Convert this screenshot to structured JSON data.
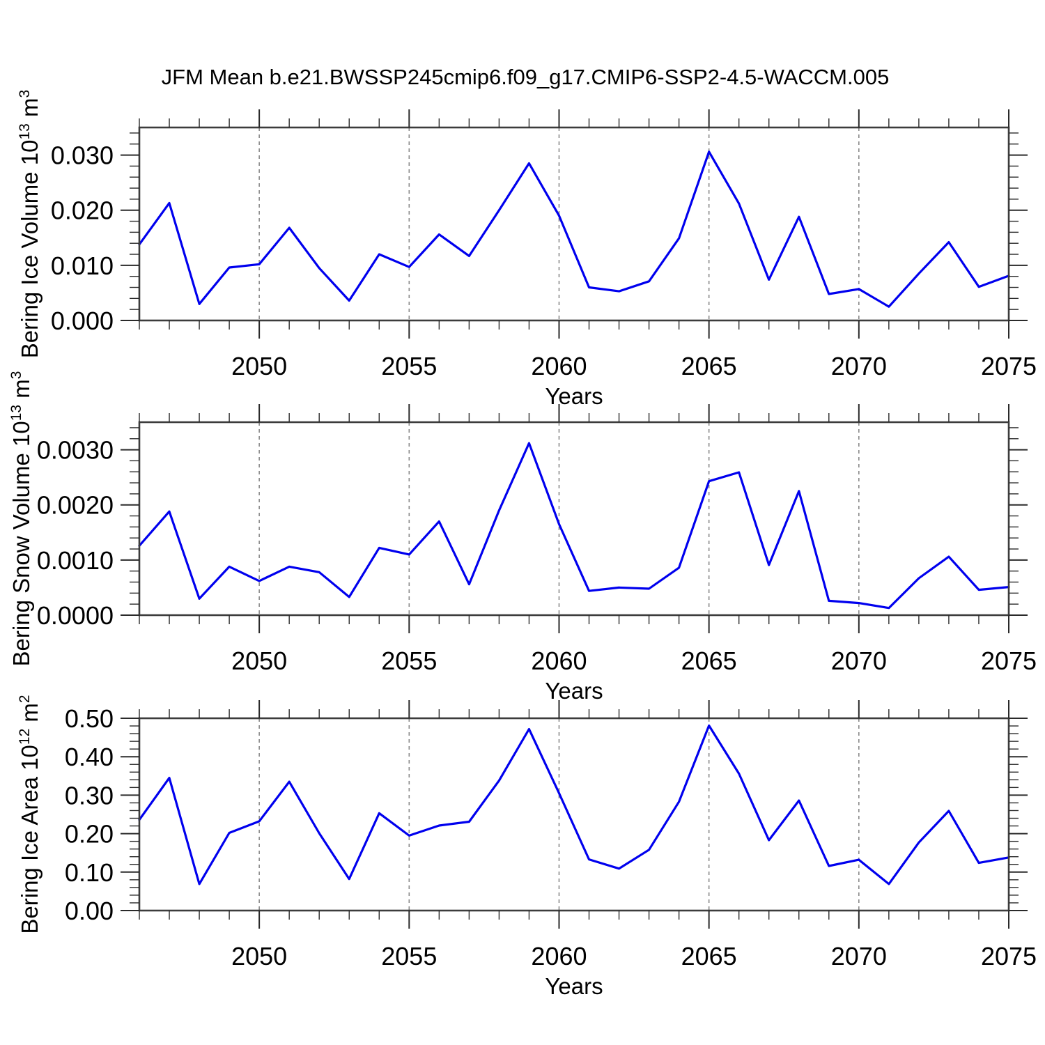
{
  "title": "JFM Mean b.e21.BWSSP245cmip6.f09_g17.CMIP6-SSP2-4.5-WACCM.005",
  "colors": {
    "line": "#0000EE",
    "frame": "#3c3c3c",
    "tick": "#2a2a2a",
    "grid": "#8a8a8a",
    "text": "#000000"
  },
  "years": [
    2046,
    2047,
    2048,
    2049,
    2050,
    2051,
    2052,
    2053,
    2054,
    2055,
    2056,
    2057,
    2058,
    2059,
    2060,
    2061,
    2062,
    2063,
    2064,
    2065,
    2066,
    2067,
    2068,
    2069,
    2070,
    2071,
    2072,
    2073,
    2074,
    2075
  ],
  "chart_data": [
    {
      "type": "line",
      "name": "bering-ice-volume",
      "ylabel_segments": [
        {
          "t": "Bering Ice Volume 10"
        },
        {
          "t": "13",
          "sup": true
        },
        {
          "t": " m"
        },
        {
          "t": "3",
          "sup": true
        }
      ],
      "xlabel": "Years",
      "xlim": [
        2046,
        2075
      ],
      "ylim": [
        0,
        0.035
      ],
      "values": [
        0.0138,
        0.0213,
        0.003,
        0.0096,
        0.0102,
        0.0168,
        0.0095,
        0.0036,
        0.012,
        0.0097,
        0.0156,
        0.0117,
        0.02,
        0.0285,
        0.019,
        0.006,
        0.0053,
        0.0071,
        0.0149,
        0.0306,
        0.0212,
        0.0074,
        0.0188,
        0.0048,
        0.0057,
        0.0025,
        0.0085,
        0.0142,
        0.0061,
        0.0081
      ],
      "y_ticks": [
        {
          "v": 0.0,
          "label": "0.000"
        },
        {
          "v": 0.01,
          "label": "0.010"
        },
        {
          "v": 0.02,
          "label": "0.020"
        },
        {
          "v": 0.03,
          "label": "0.030"
        }
      ],
      "y_minor_step": 0.002,
      "x_major_ticks": [
        {
          "v": 2050,
          "label": "2050"
        },
        {
          "v": 2055,
          "label": "2055"
        },
        {
          "v": 2060,
          "label": "2060"
        },
        {
          "v": 2065,
          "label": "2065"
        },
        {
          "v": 2070,
          "label": "2070"
        },
        {
          "v": 2075,
          "label": "2075"
        }
      ],
      "x_minor_step": 1,
      "grid_years": [
        2050,
        2055,
        2060,
        2065,
        2070
      ]
    },
    {
      "type": "line",
      "name": "bering-snow-volume",
      "ylabel_segments": [
        {
          "t": "Bering Snow Volume 10"
        },
        {
          "t": "13",
          "sup": true
        },
        {
          "t": " m"
        },
        {
          "t": "3",
          "sup": true
        }
      ],
      "xlabel": "Years",
      "xlim": [
        2046,
        2075
      ],
      "ylim": [
        0,
        0.0035
      ],
      "values": [
        0.00126,
        0.00188,
        0.0003,
        0.00088,
        0.00062,
        0.00088,
        0.00078,
        0.00033,
        0.00122,
        0.0011,
        0.0017,
        0.00056,
        0.0019,
        0.00312,
        0.00165,
        0.00044,
        0.0005,
        0.00048,
        0.00086,
        0.00243,
        0.00259,
        0.00091,
        0.00225,
        0.00026,
        0.00022,
        0.00013,
        0.00067,
        0.00106,
        0.00046,
        0.00051
      ],
      "y_ticks": [
        {
          "v": 0.0,
          "label": "0.0000"
        },
        {
          "v": 0.001,
          "label": "0.0010"
        },
        {
          "v": 0.002,
          "label": "0.0020"
        },
        {
          "v": 0.003,
          "label": "0.0030"
        }
      ],
      "y_minor_step": 0.0002,
      "x_major_ticks": [
        {
          "v": 2050,
          "label": "2050"
        },
        {
          "v": 2055,
          "label": "2055"
        },
        {
          "v": 2060,
          "label": "2060"
        },
        {
          "v": 2065,
          "label": "2065"
        },
        {
          "v": 2070,
          "label": "2070"
        },
        {
          "v": 2075,
          "label": "2075"
        }
      ],
      "x_minor_step": 1,
      "grid_years": [
        2050,
        2055,
        2060,
        2065,
        2070
      ]
    },
    {
      "type": "line",
      "name": "bering-ice-area",
      "ylabel_segments": [
        {
          "t": "Bering Ice Area 10"
        },
        {
          "t": "12",
          "sup": true
        },
        {
          "t": " m"
        },
        {
          "t": "2",
          "sup": true
        }
      ],
      "xlabel": "Years",
      "xlim": [
        2046,
        2075
      ],
      "ylim": [
        0,
        0.5
      ],
      "values": [
        0.236,
        0.345,
        0.069,
        0.202,
        0.232,
        0.335,
        0.201,
        0.082,
        0.253,
        0.195,
        0.221,
        0.231,
        0.338,
        0.472,
        0.305,
        0.133,
        0.109,
        0.158,
        0.283,
        0.481,
        0.356,
        0.183,
        0.286,
        0.116,
        0.132,
        0.069,
        0.177,
        0.259,
        0.124,
        0.138
      ],
      "y_ticks": [
        {
          "v": 0.0,
          "label": "0.00"
        },
        {
          "v": 0.1,
          "label": "0.10"
        },
        {
          "v": 0.2,
          "label": "0.20"
        },
        {
          "v": 0.3,
          "label": "0.30"
        },
        {
          "v": 0.4,
          "label": "0.40"
        },
        {
          "v": 0.5,
          "label": "0.50"
        }
      ],
      "y_minor_step": 0.02,
      "x_major_ticks": [
        {
          "v": 2050,
          "label": "2050"
        },
        {
          "v": 2055,
          "label": "2055"
        },
        {
          "v": 2060,
          "label": "2060"
        },
        {
          "v": 2065,
          "label": "2065"
        },
        {
          "v": 2070,
          "label": "2070"
        },
        {
          "v": 2075,
          "label": "2075"
        }
      ],
      "x_minor_step": 1,
      "grid_years": [
        2050,
        2055,
        2060,
        2065,
        2070
      ]
    }
  ]
}
